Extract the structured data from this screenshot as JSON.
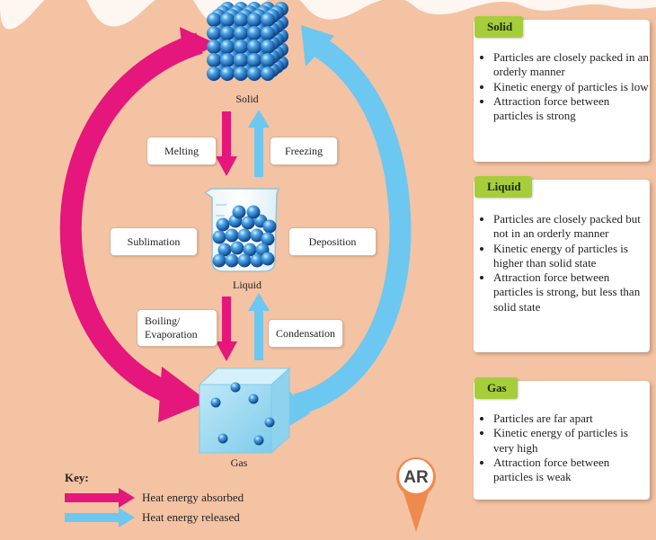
{
  "states": {
    "solid": "Solid",
    "liquid": "Liquid",
    "gas": "Gas"
  },
  "processes": {
    "melting": "Melting",
    "freezing": "Freezing",
    "sublimation": "Sublimation",
    "deposition": "Deposition",
    "boiling": [
      "Boiling/",
      "Evaporation"
    ],
    "condensation": "Condensation"
  },
  "cards": [
    {
      "title": "Solid",
      "items": [
        "Particles are closely packed in an orderly manner",
        "Kinetic energy of particles is low",
        "Attraction force between particles is strong"
      ]
    },
    {
      "title": "Liquid",
      "items": [
        "Particles are closely packed but not in an orderly manner",
        "Kinetic energy of particles is higher than solid state",
        "Attraction force between particles is strong, but less than solid state"
      ]
    },
    {
      "title": "Gas",
      "items": [
        "Particles are far apart",
        "Kinetic energy of particles is very high",
        "Attraction force between particles is weak"
      ]
    }
  ],
  "key": {
    "title": "Key:",
    "absorbed": "Heat energy absorbed",
    "released": "Heat energy released"
  },
  "ar_badge": "AR",
  "colors": {
    "absorbed": "#e5167c",
    "released": "#6cc7f1",
    "background": "#f4c3a3",
    "tab": "#a5ce3a"
  }
}
